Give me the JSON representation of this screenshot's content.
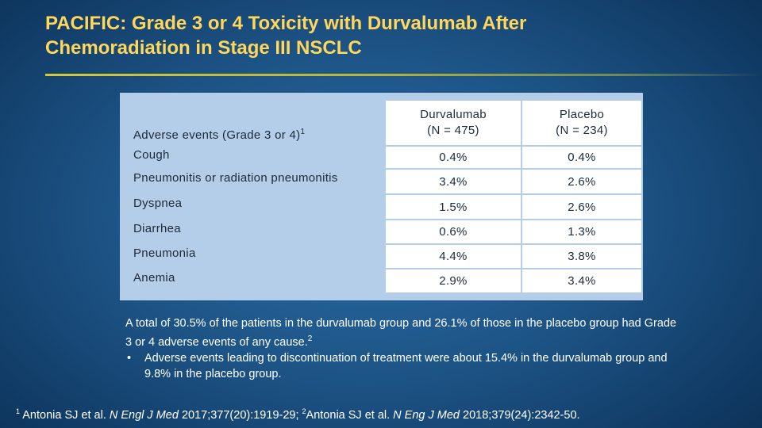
{
  "slide": {
    "title_line1": "PACIFIC: Grade 3 or 4 Toxicity with Durvalumab After",
    "title_line2": "Chemoradiation in Stage III NSCLC"
  },
  "table": {
    "header": {
      "label": "Adverse events (Grade 3 or 4)",
      "label_sup": "1",
      "col1_name": "Durvalumab",
      "col1_n": "(N = 475)",
      "col2_name": "Placebo",
      "col2_n": "(N = 234)"
    },
    "rows": [
      {
        "label": "Cough",
        "durvalumab": "0.4%",
        "placebo": "0.4%"
      },
      {
        "label": "Pneumonitis or radiation pneumonitis",
        "durvalumab": "3.4%",
        "placebo": "2.6%"
      },
      {
        "label": "Dyspnea",
        "durvalumab": "1.5%",
        "placebo": "2.6%"
      },
      {
        "label": "Diarrhea",
        "durvalumab": "0.6%",
        "placebo": "1.3%"
      },
      {
        "label": "Pneumonia",
        "durvalumab": "4.4%",
        "placebo": "3.8%"
      },
      {
        "label": "Anemia",
        "durvalumab": "2.9%",
        "placebo": "3.4%"
      }
    ]
  },
  "summary": {
    "text": "A total of 30.5% of the patients in the durvalumab group and 26.1% of those in the placebo group had Grade 3 or 4 adverse events of any cause.",
    "text_sup": "2",
    "bullet_char": "•",
    "bullet": "Adverse events leading to discontinuation of treatment were about 15.4% in the durvalumab group and 9.8% in the placebo group."
  },
  "references": {
    "ref1_sup": "1",
    "ref1_authors": "Antonia SJ et al.",
    "ref1_journal": "N Engl J Med",
    "ref1_details": "2017;377(20):1919-29;",
    "ref2_sup": "2",
    "ref2_authors": "Antonia SJ et al.",
    "ref2_journal": "N Eng J Med",
    "ref2_details": "2018;379(24):2342-50."
  },
  "colors": {
    "title": "#ffd75a",
    "background": "#1d5486",
    "table_panel": "#b4cde8"
  }
}
